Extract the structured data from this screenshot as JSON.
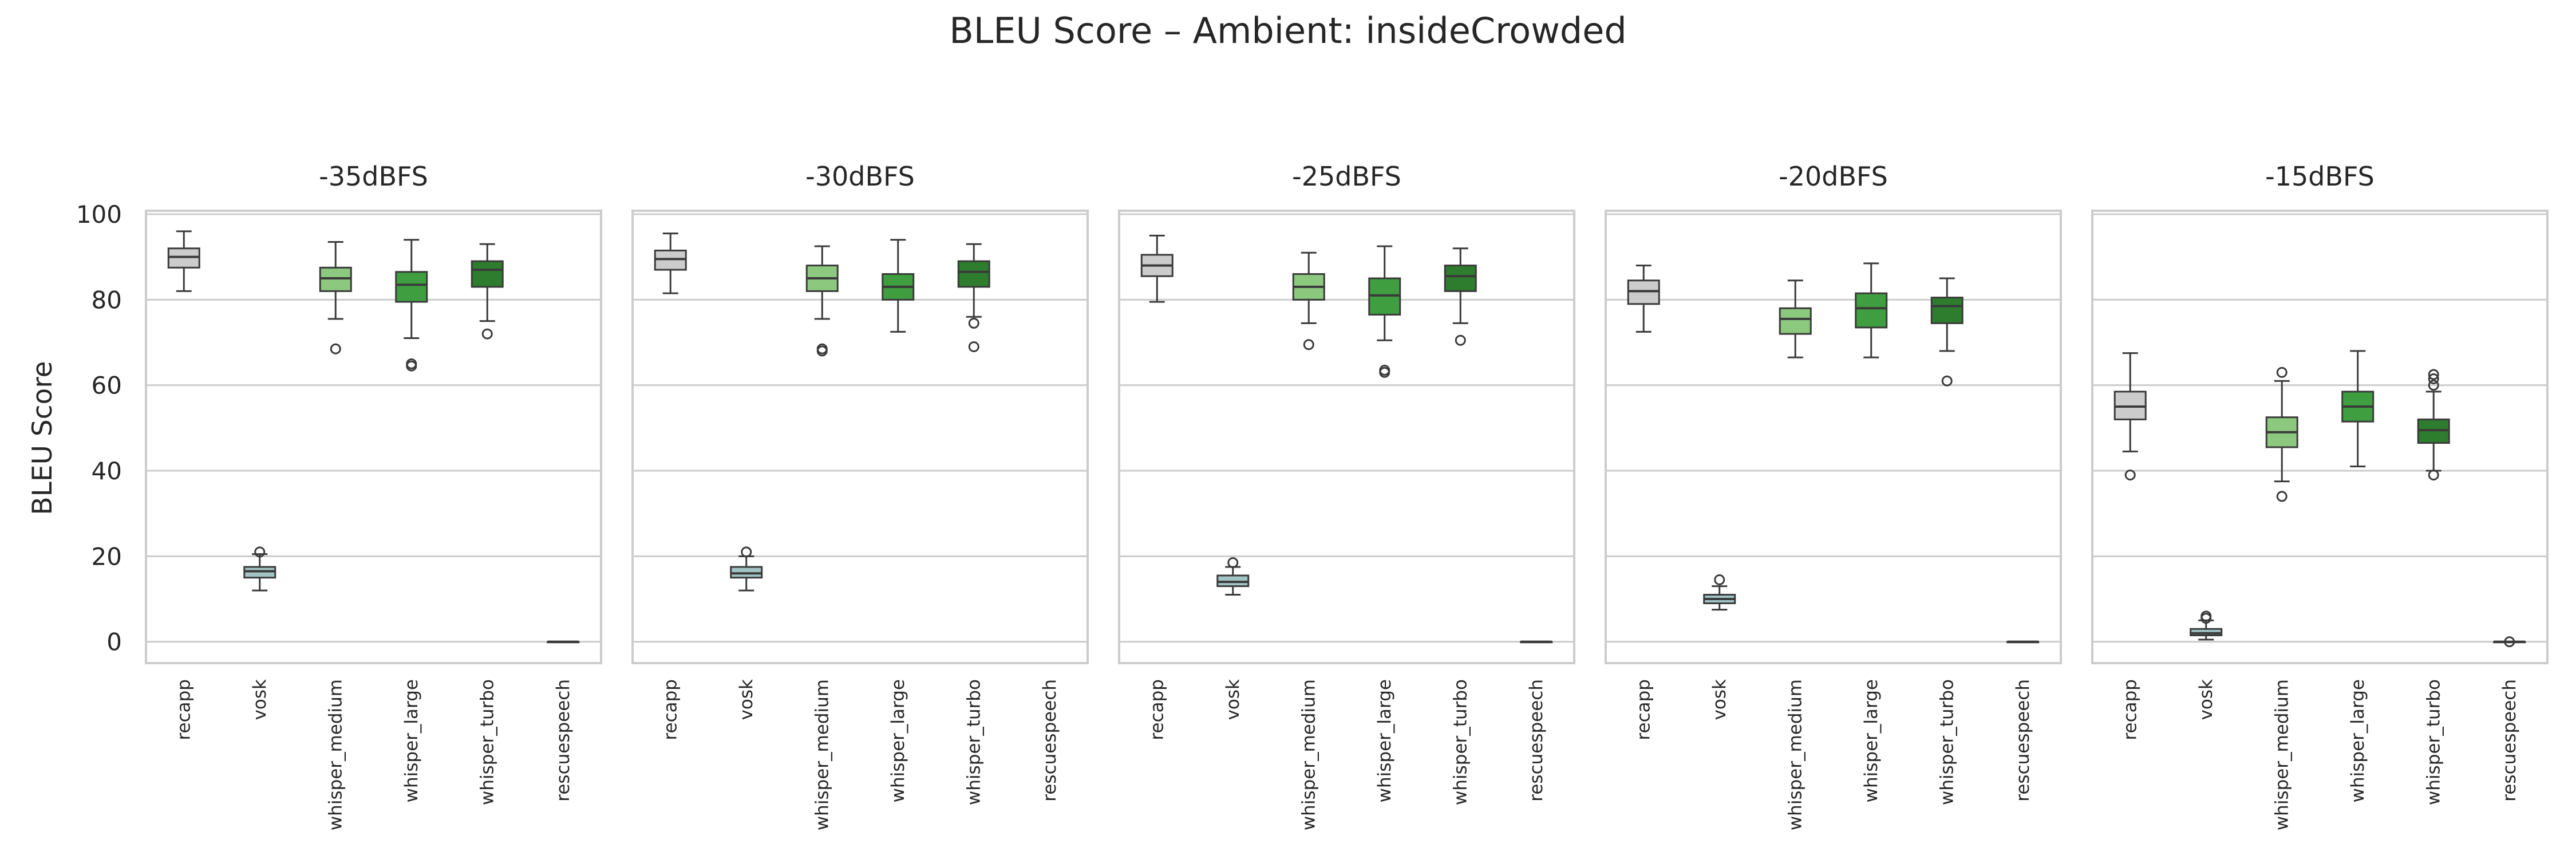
{
  "chart_data": {
    "type": "box",
    "title": "BLEU Score – Ambient: insideCrowded",
    "ylabel": "BLEU Score",
    "ylim": [
      -5,
      100
    ],
    "yticks": [
      0,
      20,
      40,
      60,
      80,
      100
    ],
    "grid": "horizontal",
    "categories": [
      "recapp",
      "vosk",
      "whisper_medium",
      "whisper_large",
      "whisper_turbo",
      "rescuespeech"
    ],
    "colors": {
      "recapp": "#cccccc",
      "vosk": "#a3c4c4",
      "whisper_medium": "#8cc97f",
      "whisper_large": "#3f9e3f",
      "whisper_turbo": "#2e7d2e",
      "rescuespeech": "#dddddd"
    },
    "panels": [
      {
        "title": "-35dBFS",
        "boxes": [
          {
            "category": "recapp",
            "whisker_low": 82,
            "q1": 87.5,
            "median": 90,
            "q3": 92,
            "whisker_high": 96,
            "outliers": []
          },
          {
            "category": "vosk",
            "whisker_low": 12,
            "q1": 15,
            "median": 16.5,
            "q3": 17.5,
            "whisker_high": 20.5,
            "outliers": [
              21
            ]
          },
          {
            "category": "whisper_medium",
            "whisker_low": 75.5,
            "q1": 82,
            "median": 85,
            "q3": 87.5,
            "whisker_high": 93.5,
            "outliers": [
              68.5
            ]
          },
          {
            "category": "whisper_large",
            "whisker_low": 71,
            "q1": 79.5,
            "median": 83.5,
            "q3": 86.5,
            "whisker_high": 94,
            "outliers": [
              65,
              64.5
            ]
          },
          {
            "category": "whisper_turbo",
            "whisker_low": 75,
            "q1": 83,
            "median": 87,
            "q3": 89,
            "whisker_high": 93,
            "outliers": [
              72
            ]
          },
          {
            "category": "rescuespeech",
            "whisker_low": 0,
            "q1": 0,
            "median": 0,
            "q3": 0,
            "whisker_high": 0,
            "outliers": []
          }
        ]
      },
      {
        "title": "-30dBFS",
        "boxes": [
          {
            "category": "recapp",
            "whisker_low": 81.5,
            "q1": 87,
            "median": 89.5,
            "q3": 91.5,
            "whisker_high": 95.5,
            "outliers": []
          },
          {
            "category": "vosk",
            "whisker_low": 12,
            "q1": 15,
            "median": 16,
            "q3": 17.5,
            "whisker_high": 20,
            "outliers": [
              21
            ]
          },
          {
            "category": "whisper_medium",
            "whisker_low": 75.5,
            "q1": 82,
            "median": 85,
            "q3": 88,
            "whisker_high": 92.5,
            "outliers": [
              68.5,
              68
            ]
          },
          {
            "category": "whisper_large",
            "whisker_low": 72.5,
            "q1": 80,
            "median": 83,
            "q3": 86,
            "whisker_high": 94,
            "outliers": []
          },
          {
            "category": "whisper_turbo",
            "whisker_low": 76,
            "q1": 83,
            "median": 86.5,
            "q3": 89,
            "whisker_high": 93,
            "outliers": [
              74.5,
              69
            ]
          }
        ]
      },
      {
        "title": "-25dBFS",
        "boxes": [
          {
            "category": "recapp",
            "whisker_low": 79.5,
            "q1": 85.5,
            "median": 88,
            "q3": 90.5,
            "whisker_high": 95,
            "outliers": []
          },
          {
            "category": "vosk",
            "whisker_low": 11,
            "q1": 13,
            "median": 14,
            "q3": 15.5,
            "whisker_high": 17.5,
            "outliers": [
              18.5
            ]
          },
          {
            "category": "whisper_medium",
            "whisker_low": 74.5,
            "q1": 80,
            "median": 83,
            "q3": 86,
            "whisker_high": 91,
            "outliers": [
              69.5
            ]
          },
          {
            "category": "whisper_large",
            "whisker_low": 70.5,
            "q1": 76.5,
            "median": 81,
            "q3": 85,
            "whisker_high": 92.5,
            "outliers": [
              63.5,
              63
            ]
          },
          {
            "category": "whisper_turbo",
            "whisker_low": 74.5,
            "q1": 82,
            "median": 85.5,
            "q3": 88,
            "whisker_high": 92,
            "outliers": [
              70.5
            ]
          },
          {
            "category": "rescuespeech",
            "whisker_low": 0,
            "q1": 0,
            "median": 0,
            "q3": 0,
            "whisker_high": 0,
            "outliers": []
          }
        ]
      },
      {
        "title": "-20dBFS",
        "boxes": [
          {
            "category": "recapp",
            "whisker_low": 72.5,
            "q1": 79,
            "median": 82,
            "q3": 84.5,
            "whisker_high": 88,
            "outliers": []
          },
          {
            "category": "vosk",
            "whisker_low": 7.5,
            "q1": 9,
            "median": 10,
            "q3": 11,
            "whisker_high": 13,
            "outliers": [
              14.5
            ]
          },
          {
            "category": "whisper_medium",
            "whisker_low": 66.5,
            "q1": 72,
            "median": 75.5,
            "q3": 78,
            "whisker_high": 84.5,
            "outliers": []
          },
          {
            "category": "whisper_large",
            "whisker_low": 66.5,
            "q1": 73.5,
            "median": 78,
            "q3": 81.5,
            "whisker_high": 88.5,
            "outliers": []
          },
          {
            "category": "whisper_turbo",
            "whisker_low": 68,
            "q1": 74.5,
            "median": 78.5,
            "q3": 80.5,
            "whisker_high": 85,
            "outliers": [
              61
            ]
          },
          {
            "category": "rescuespeech",
            "whisker_low": 0,
            "q1": 0,
            "median": 0,
            "q3": 0,
            "whisker_high": 0,
            "outliers": []
          }
        ]
      },
      {
        "title": "-15dBFS",
        "boxes": [
          {
            "category": "recapp",
            "whisker_low": 44.5,
            "q1": 52,
            "median": 55,
            "q3": 58.5,
            "whisker_high": 67.5,
            "outliers": [
              39
            ]
          },
          {
            "category": "vosk",
            "whisker_low": 0.5,
            "q1": 1.5,
            "median": 2,
            "q3": 3,
            "whisker_high": 5,
            "outliers": [
              6,
              5.5
            ]
          },
          {
            "category": "whisper_medium",
            "whisker_low": 37.5,
            "q1": 45.5,
            "median": 49,
            "q3": 52.5,
            "whisker_high": 61,
            "outliers": [
              63,
              34
            ]
          },
          {
            "category": "whisper_large",
            "whisker_low": 41,
            "q1": 51.5,
            "median": 55,
            "q3": 58.5,
            "whisker_high": 68,
            "outliers": []
          },
          {
            "category": "whisper_turbo",
            "whisker_low": 40,
            "q1": 46.5,
            "median": 49.5,
            "q3": 52,
            "whisker_high": 58.5,
            "outliers": [
              62.5,
              61.5,
              60,
              39
            ]
          },
          {
            "category": "rescuespeech",
            "whisker_low": 0,
            "q1": 0,
            "median": 0,
            "q3": 0,
            "whisker_high": 0,
            "outliers": [
              0
            ]
          }
        ]
      }
    ]
  }
}
